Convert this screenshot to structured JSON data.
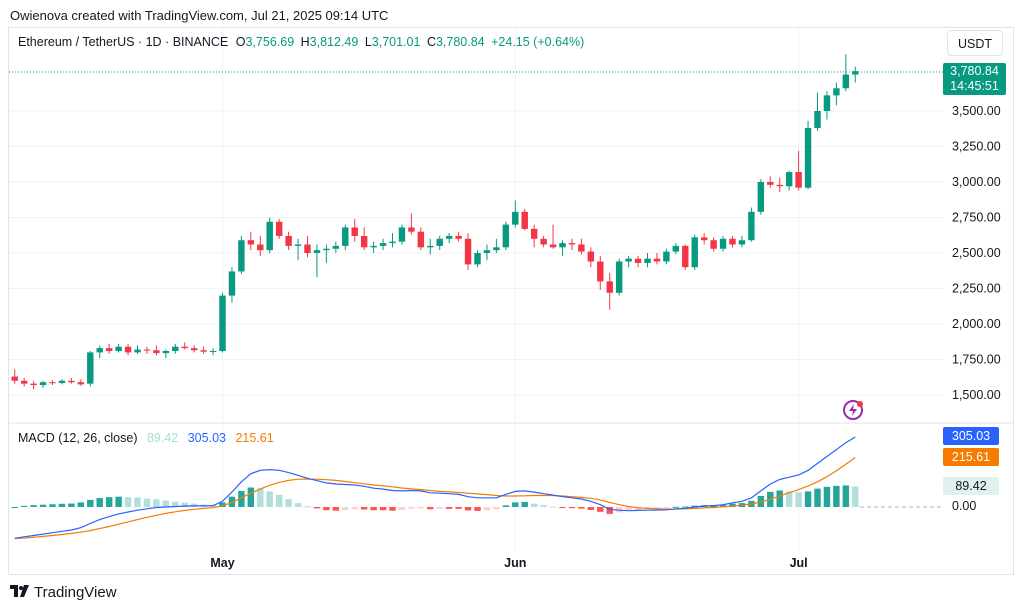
{
  "header": {
    "attribution": "Owienova created with TradingView.com, Jul 21, 2025 09:14 UTC"
  },
  "legend": {
    "symbol": "Ethereum / TetherUS · 1D · BINANCE",
    "o_label": "O",
    "o_value": "3,756.69",
    "h_label": "H",
    "h_value": "3,812.49",
    "l_label": "L",
    "l_value": "3,701.01",
    "c_label": "C",
    "c_value": "3,780.84",
    "change": "+24.15 (+0.64%)"
  },
  "currency_button": "USDT",
  "price_badge": {
    "price": "3,780.84",
    "countdown": "14:45:51"
  },
  "macd_legend": {
    "title": "MACD (12, 26, close)",
    "hist": "89.42",
    "macd": "305.03",
    "signal": "215.61"
  },
  "macd_axis_badges": {
    "macd": "305.03",
    "signal": "215.61",
    "hist": "89.42",
    "zero": "0.00"
  },
  "footer": {
    "brand": "TradingView"
  },
  "colors": {
    "up": "#089981",
    "down": "#f23645",
    "macd": "#2962ff",
    "signal": "#f57c00",
    "hist_up_strong": "#26a69a",
    "hist_up_weak": "#b2dfdb",
    "hist_down_strong": "#ff5252",
    "hist_down_weak": "#ffcdd2"
  },
  "chart_data": [
    {
      "type": "candlestick",
      "title": "Ethereum / TetherUS · 1D · BINANCE",
      "ylim": [
        1350,
        3950
      ],
      "y_ticks": [
        "1,500.00",
        "1,750.00",
        "2,000.00",
        "2,250.00",
        "2,500.00",
        "2,750.00",
        "3,000.00",
        "3,250.00",
        "3,500.00"
      ],
      "y_tick_values": [
        1500,
        1750,
        2000,
        2250,
        2500,
        2750,
        3000,
        3250,
        3500
      ],
      "x_ticks": [
        {
          "label": "May",
          "index": 22
        },
        {
          "label": "Jun",
          "index": 53
        },
        {
          "label": "Jul",
          "index": 83
        }
      ],
      "candles": [
        [
          1630,
          1680,
          1580,
          1600
        ],
        [
          1600,
          1620,
          1560,
          1580
        ],
        [
          1580,
          1600,
          1540,
          1570
        ],
        [
          1570,
          1600,
          1550,
          1590
        ],
        [
          1590,
          1605,
          1570,
          1585
        ],
        [
          1585,
          1610,
          1575,
          1600
        ],
        [
          1600,
          1620,
          1580,
          1590
        ],
        [
          1590,
          1610,
          1565,
          1575
        ],
        [
          1580,
          1810,
          1560,
          1800
        ],
        [
          1800,
          1850,
          1760,
          1830
        ],
        [
          1830,
          1860,
          1790,
          1810
        ],
        [
          1810,
          1860,
          1800,
          1840
        ],
        [
          1840,
          1860,
          1780,
          1800
        ],
        [
          1800,
          1850,
          1790,
          1820
        ],
        [
          1820,
          1840,
          1790,
          1815
        ],
        [
          1815,
          1850,
          1780,
          1795
        ],
        [
          1795,
          1820,
          1760,
          1810
        ],
        [
          1810,
          1860,
          1790,
          1840
        ],
        [
          1840,
          1870,
          1820,
          1830
        ],
        [
          1830,
          1850,
          1800,
          1815
        ],
        [
          1815,
          1840,
          1790,
          1805
        ],
        [
          1805,
          1830,
          1780,
          1810
        ],
        [
          1810,
          2220,
          1800,
          2200
        ],
        [
          2200,
          2400,
          2150,
          2370
        ],
        [
          2370,
          2620,
          2350,
          2590
        ],
        [
          2590,
          2650,
          2520,
          2560
        ],
        [
          2560,
          2620,
          2480,
          2520
        ],
        [
          2520,
          2750,
          2500,
          2720
        ],
        [
          2720,
          2740,
          2600,
          2620
        ],
        [
          2620,
          2650,
          2520,
          2550
        ],
        [
          2550,
          2600,
          2450,
          2560
        ],
        [
          2560,
          2620,
          2470,
          2500
        ],
        [
          2500,
          2560,
          2330,
          2520
        ],
        [
          2520,
          2560,
          2430,
          2530
        ],
        [
          2530,
          2580,
          2500,
          2550
        ],
        [
          2550,
          2700,
          2520,
          2680
        ],
        [
          2680,
          2740,
          2580,
          2620
        ],
        [
          2620,
          2680,
          2520,
          2540
        ],
        [
          2540,
          2580,
          2500,
          2550
        ],
        [
          2550,
          2600,
          2520,
          2570
        ],
        [
          2570,
          2640,
          2540,
          2580
        ],
        [
          2580,
          2700,
          2560,
          2680
        ],
        [
          2680,
          2780,
          2630,
          2650
        ],
        [
          2650,
          2680,
          2520,
          2540
        ],
        [
          2540,
          2600,
          2490,
          2550
        ],
        [
          2550,
          2620,
          2520,
          2600
        ],
        [
          2600,
          2640,
          2570,
          2620
        ],
        [
          2620,
          2650,
          2580,
          2600
        ],
        [
          2600,
          2640,
          2380,
          2420
        ],
        [
          2420,
          2520,
          2400,
          2500
        ],
        [
          2500,
          2560,
          2450,
          2520
        ],
        [
          2520,
          2600,
          2500,
          2540
        ],
        [
          2540,
          2720,
          2520,
          2700
        ],
        [
          2700,
          2870,
          2680,
          2790
        ],
        [
          2790,
          2810,
          2660,
          2670
        ],
        [
          2670,
          2700,
          2540,
          2600
        ],
        [
          2600,
          2620,
          2540,
          2560
        ],
        [
          2560,
          2700,
          2530,
          2540
        ],
        [
          2540,
          2590,
          2480,
          2570
        ],
        [
          2570,
          2600,
          2520,
          2560
        ],
        [
          2560,
          2600,
          2490,
          2510
        ],
        [
          2510,
          2540,
          2400,
          2440
        ],
        [
          2440,
          2480,
          2240,
          2300
        ],
        [
          2300,
          2360,
          2100,
          2220
        ],
        [
          2220,
          2460,
          2200,
          2440
        ],
        [
          2440,
          2480,
          2400,
          2460
        ],
        [
          2460,
          2480,
          2400,
          2430
        ],
        [
          2430,
          2500,
          2400,
          2460
        ],
        [
          2460,
          2500,
          2420,
          2440
        ],
        [
          2440,
          2530,
          2420,
          2510
        ],
        [
          2510,
          2570,
          2490,
          2550
        ],
        [
          2550,
          2560,
          2380,
          2400
        ],
        [
          2400,
          2630,
          2380,
          2610
        ],
        [
          2610,
          2640,
          2560,
          2590
        ],
        [
          2590,
          2610,
          2510,
          2530
        ],
        [
          2530,
          2620,
          2510,
          2600
        ],
        [
          2600,
          2620,
          2540,
          2560
        ],
        [
          2560,
          2620,
          2540,
          2590
        ],
        [
          2590,
          2820,
          2580,
          2790
        ],
        [
          2790,
          3020,
          2770,
          3000
        ],
        [
          3000,
          3040,
          2960,
          2980
        ],
        [
          2980,
          3030,
          2930,
          2970
        ],
        [
          2970,
          3080,
          2940,
          3070
        ],
        [
          3070,
          3220,
          2940,
          2960
        ],
        [
          2960,
          3430,
          2950,
          3380
        ],
        [
          3380,
          3630,
          3360,
          3500
        ],
        [
          3500,
          3640,
          3440,
          3610
        ],
        [
          3610,
          3700,
          3540,
          3660
        ],
        [
          3660,
          3900,
          3640,
          3756.69
        ],
        [
          3756.69,
          3812.49,
          3701.01,
          3780.84
        ]
      ]
    },
    {
      "type": "macd",
      "title": "MACD (12, 26, close)",
      "ylim": [
        -150,
        400
      ],
      "series": [
        {
          "name": "MACD",
          "values": [
            -137,
            -130,
            -124,
            -118,
            -112,
            -106,
            -100,
            -90,
            -72,
            -55,
            -42,
            -30,
            -22,
            -14,
            -8,
            -2,
            0,
            2,
            4,
            5,
            5,
            6,
            25,
            65,
            110,
            145,
            160,
            163,
            160,
            150,
            138,
            125,
            115,
            105,
            100,
            98,
            96,
            90,
            82,
            78,
            72,
            70,
            72,
            70,
            62,
            60,
            58,
            55,
            45,
            40,
            40,
            40,
            55,
            68,
            70,
            65,
            58,
            52,
            45,
            40,
            35,
            25,
            10,
            -10,
            -14,
            -16,
            -15,
            -14,
            -13,
            -12,
            -8,
            -6,
            0,
            4,
            6,
            10,
            18,
            25,
            40,
            70,
            100,
            120,
            130,
            140,
            160,
            190,
            220,
            250,
            280,
            305.03
          ]
        },
        {
          "name": "Signal",
          "values": [
            -137,
            -135,
            -132,
            -128,
            -124,
            -120,
            -115,
            -110,
            -103,
            -94,
            -85,
            -75,
            -65,
            -55,
            -45,
            -36,
            -28,
            -21,
            -15,
            -10,
            -6,
            -3,
            5,
            20,
            40,
            60,
            78,
            95,
            107,
            116,
            121,
            122,
            121,
            119,
            116,
            111,
            106,
            101,
            96,
            92,
            88,
            83,
            79,
            76,
            72,
            68,
            66,
            63,
            60,
            57,
            54,
            50,
            48,
            48,
            49,
            50,
            50,
            50,
            48,
            45,
            42,
            38,
            31,
            20,
            10,
            2,
            -3,
            -6,
            -8,
            -9,
            -9,
            -8,
            -6,
            -4,
            -2,
            1,
            4,
            8,
            13,
            22,
            34,
            48,
            62,
            76,
            92,
            110,
            132,
            158,
            186,
            215.61
          ]
        },
        {
          "name": "Histogram",
          "values": [
            0,
            5,
            8,
            10,
            12,
            14,
            15,
            20,
            31,
            39,
            43,
            45,
            43,
            41,
            37,
            34,
            28,
            23,
            19,
            15,
            11,
            9,
            20,
            45,
            70,
            85,
            82,
            68,
            53,
            34,
            17,
            3,
            -6,
            -14,
            -16,
            -13,
            -10,
            -11,
            -14,
            -14,
            -16,
            -13,
            -7,
            -6,
            -10,
            -8,
            -8,
            -8,
            -15,
            -17,
            -14,
            -10,
            7,
            20,
            22,
            15,
            8,
            2,
            -3,
            -5,
            -7,
            -13,
            -21,
            -30,
            -24,
            -18,
            -12,
            -8,
            -5,
            -3,
            1,
            2,
            6,
            8,
            8,
            9,
            14,
            17,
            27,
            48,
            66,
            72,
            68,
            64,
            68,
            80,
            88,
            92,
            94,
            89.42
          ]
        }
      ],
      "zero_label": "0.00"
    }
  ]
}
